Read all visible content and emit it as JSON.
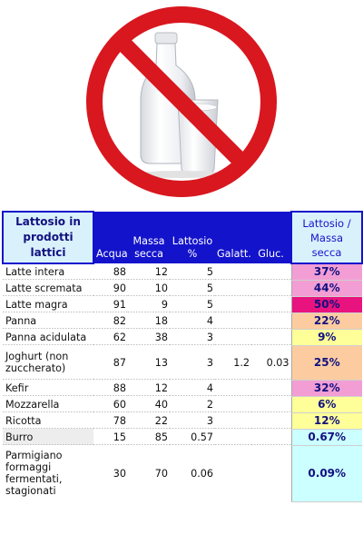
{
  "image": {
    "alt": "no-milk sign",
    "colors": {
      "sign": "#d8171f",
      "milk": "#f4f4f6",
      "bottle_cap": "#e4e6ea"
    }
  },
  "table": {
    "header": {
      "title": "Lattosio in prodotti lattici",
      "columns": [
        "Acqua",
        "Massa secca",
        "Lattosio %",
        "Galatt.",
        "Gluc."
      ],
      "ratio": "Lattosio / Massa secca"
    },
    "rows": [
      {
        "name": "Latte intera",
        "acqua": "88",
        "massa": "12",
        "lattosio": "5",
        "galatt": "",
        "gluc": "",
        "ratio": "37%",
        "color": "#f29ed4"
      },
      {
        "name": "Latte scremata",
        "acqua": "90",
        "massa": "10",
        "lattosio": "5",
        "galatt": "",
        "gluc": "",
        "ratio": "44%",
        "color": "#f29ed4"
      },
      {
        "name": "Latte magra",
        "acqua": "91",
        "massa": "9",
        "lattosio": "5",
        "galatt": "",
        "gluc": "",
        "ratio": "50%",
        "color": "#e8137e"
      },
      {
        "name": "Panna",
        "acqua": "82",
        "massa": "18",
        "lattosio": "4",
        "galatt": "",
        "gluc": "",
        "ratio": "22%",
        "color": "#fccca0"
      },
      {
        "name": "Panna acidulata",
        "acqua": "62",
        "massa": "38",
        "lattosio": "3",
        "galatt": "",
        "gluc": "",
        "ratio": "9%",
        "color": "#ffff99"
      },
      {
        "name": "Joghurt (non zuccherato)",
        "acqua": "87",
        "massa": "13",
        "lattosio": "3",
        "galatt": "1.2",
        "gluc": "0.03",
        "ratio": "25%",
        "color": "#fccca0"
      },
      {
        "name": "Kefir",
        "acqua": "88",
        "massa": "12",
        "lattosio": "4",
        "galatt": "",
        "gluc": "",
        "ratio": "32%",
        "color": "#f29ed4"
      },
      {
        "name": "Mozzarella",
        "acqua": "60",
        "massa": "40",
        "lattosio": "2",
        "galatt": "",
        "gluc": "",
        "ratio": "6%",
        "color": "#ffff99"
      },
      {
        "name": "Ricotta",
        "acqua": "78",
        "massa": "22",
        "lattosio": "3",
        "galatt": "",
        "gluc": "",
        "ratio": "12%",
        "color": "#ffff99"
      },
      {
        "name": "Burro",
        "acqua": "15",
        "massa": "85",
        "lattosio": "0.57",
        "galatt": "",
        "gluc": "",
        "ratio": "0.67%",
        "color": "#ccffff"
      },
      {
        "name": "Parmigiano formaggi fermentati, stagionati",
        "acqua": "30",
        "massa": "70",
        "lattosio": "0.06",
        "galatt": "",
        "gluc": "",
        "ratio": "0.09%",
        "color": "#ccffff"
      }
    ]
  }
}
